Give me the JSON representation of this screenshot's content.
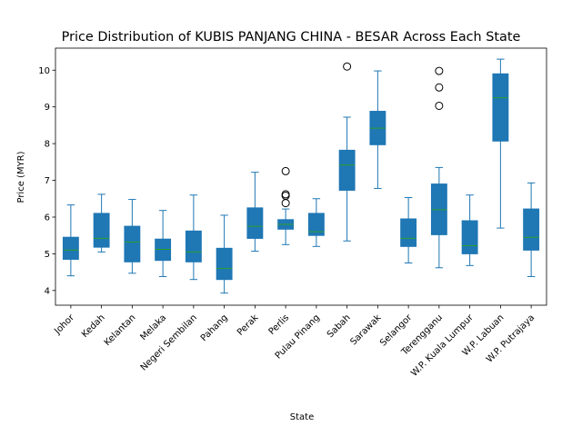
{
  "chart_data": {
    "type": "box",
    "title": "Price Distribution of KUBIS PANJANG CHINA - BESAR Across Each State",
    "xlabel": "State",
    "ylabel": "Price (MYR)",
    "ylim": [
      3.6,
      10.6
    ],
    "yticks": [
      4,
      5,
      6,
      7,
      8,
      9,
      10
    ],
    "grid": false,
    "box_color": "#1f77b4",
    "median_color": "#2ca02c",
    "categories": [
      "Johor",
      "Kedah",
      "Kelantan",
      "Melaka",
      "Negeri Sembilan",
      "Pahang",
      "Perak",
      "Perlis",
      "Pulau Pinang",
      "Sabah",
      "Sarawak",
      "Selangor",
      "Terengganu",
      "W.P. Kuala Lumpur",
      "W.P. Labuan",
      "W.P. Putrajaya"
    ],
    "boxes": [
      {
        "whisker_low": 4.4,
        "q1": 4.85,
        "median": 5.1,
        "q3": 5.45,
        "whisker_high": 6.33,
        "outliers": []
      },
      {
        "whisker_low": 5.05,
        "q1": 5.18,
        "median": 5.42,
        "q3": 6.1,
        "whisker_high": 6.62,
        "outliers": []
      },
      {
        "whisker_low": 4.47,
        "q1": 4.78,
        "median": 5.32,
        "q3": 5.75,
        "whisker_high": 6.48,
        "outliers": []
      },
      {
        "whisker_low": 4.38,
        "q1": 4.82,
        "median": 5.12,
        "q3": 5.4,
        "whisker_high": 6.18,
        "outliers": []
      },
      {
        "whisker_low": 4.3,
        "q1": 4.78,
        "median": 5.05,
        "q3": 5.62,
        "whisker_high": 6.6,
        "outliers": []
      },
      {
        "whisker_low": 3.93,
        "q1": 4.3,
        "median": 4.6,
        "q3": 5.15,
        "whisker_high": 6.05,
        "outliers": []
      },
      {
        "whisker_low": 5.07,
        "q1": 5.42,
        "median": 5.75,
        "q3": 6.25,
        "whisker_high": 7.22,
        "outliers": []
      },
      {
        "whisker_low": 5.25,
        "q1": 5.67,
        "median": 5.8,
        "q3": 5.93,
        "whisker_high": 6.22,
        "outliers": [
          6.38,
          6.58,
          6.62,
          7.25
        ]
      },
      {
        "whisker_low": 5.2,
        "q1": 5.5,
        "median": 5.6,
        "q3": 6.1,
        "whisker_high": 6.5,
        "outliers": []
      },
      {
        "whisker_low": 5.35,
        "q1": 6.73,
        "median": 7.42,
        "q3": 7.82,
        "whisker_high": 8.72,
        "outliers": [
          10.1
        ]
      },
      {
        "whisker_low": 6.78,
        "q1": 7.97,
        "median": 8.42,
        "q3": 8.88,
        "whisker_high": 9.98,
        "outliers": []
      },
      {
        "whisker_low": 4.75,
        "q1": 5.2,
        "median": 5.42,
        "q3": 5.95,
        "whisker_high": 6.53,
        "outliers": []
      },
      {
        "whisker_low": 4.62,
        "q1": 5.52,
        "median": 6.2,
        "q3": 6.9,
        "whisker_high": 7.35,
        "outliers": [
          9.03,
          9.53,
          9.98
        ]
      },
      {
        "whisker_low": 4.68,
        "q1": 5.0,
        "median": 5.22,
        "q3": 5.9,
        "whisker_high": 6.6,
        "outliers": []
      },
      {
        "whisker_low": 5.7,
        "q1": 8.07,
        "median": 9.25,
        "q3": 9.9,
        "whisker_high": 10.3,
        "outliers": []
      },
      {
        "whisker_low": 4.38,
        "q1": 5.1,
        "median": 5.45,
        "q3": 6.22,
        "whisker_high": 6.93,
        "outliers": []
      }
    ]
  }
}
